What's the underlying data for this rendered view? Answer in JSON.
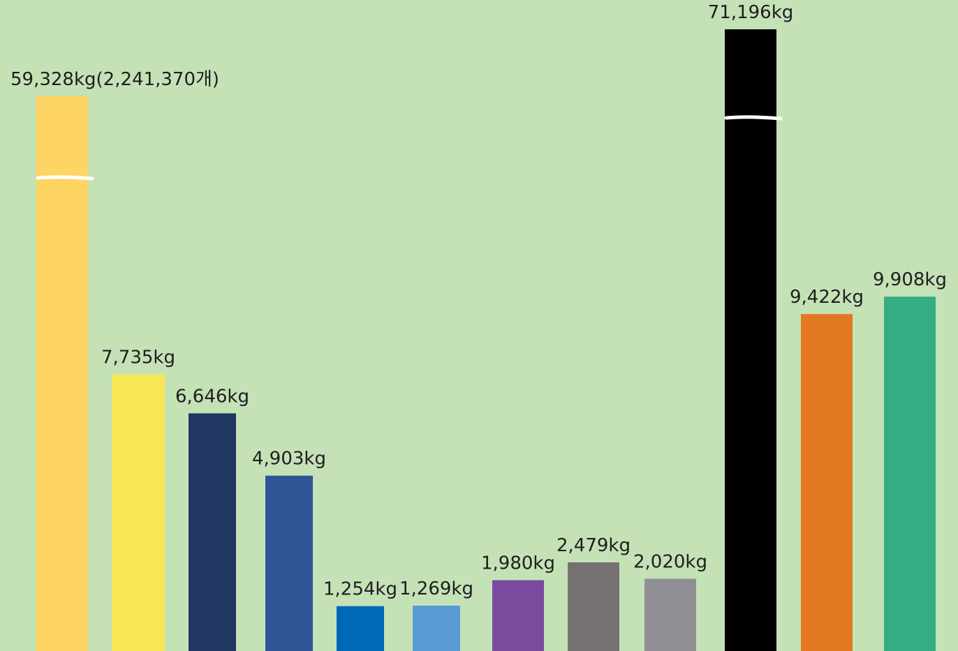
{
  "chart_data": {
    "type": "bar",
    "title": "",
    "xlabel": "",
    "ylabel": "",
    "legend": "none",
    "grid": false,
    "bars": [
      {
        "label": "59,328kg(2,241,370개)",
        "value": 59328,
        "color": "#fed563",
        "axis_break": true
      },
      {
        "label": "7,735kg",
        "value": 7735,
        "color": "#f8e655",
        "axis_break": false
      },
      {
        "label": "6,646kg",
        "value": 6646,
        "color": "#203761",
        "axis_break": false
      },
      {
        "label": "4,903kg",
        "value": 4903,
        "color": "#2f5597",
        "axis_break": false
      },
      {
        "label": "1,254kg",
        "value": 1254,
        "color": "#0069b6",
        "axis_break": false
      },
      {
        "label": "1,269kg",
        "value": 1269,
        "color": "#5b9bd5",
        "axis_break": false
      },
      {
        "label": "1,980kg",
        "value": 1980,
        "color": "#7a4a9e",
        "axis_break": false
      },
      {
        "label": "2,479kg",
        "value": 2479,
        "color": "#767171",
        "axis_break": false
      },
      {
        "label": "2,020kg",
        "value": 2020,
        "color": "#8f8f94",
        "axis_break": false
      },
      {
        "label": "71,196kg",
        "value": 71196,
        "color": "#000000",
        "axis_break": true
      },
      {
        "label": "9,422kg",
        "value": 9422,
        "color": "#e2781f",
        "axis_break": false
      },
      {
        "label": "9,908kg",
        "value": 9908,
        "color": "#33ad83",
        "axis_break": false
      }
    ]
  }
}
